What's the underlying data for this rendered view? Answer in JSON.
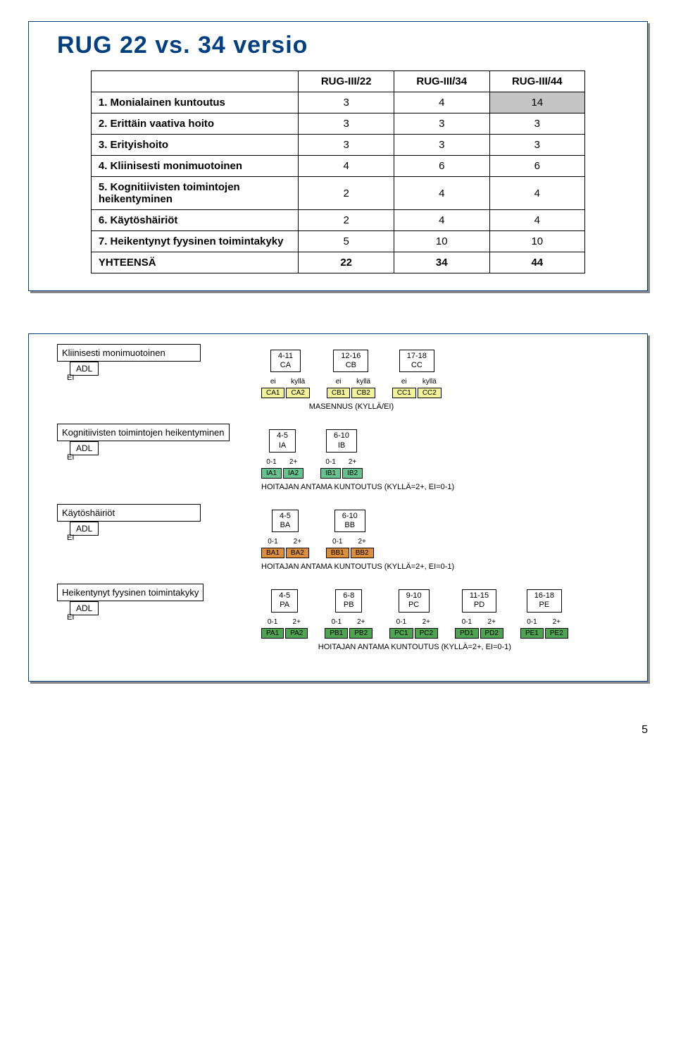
{
  "page": {
    "number": "5"
  },
  "card1": {
    "title": "RUG 22 vs. 34 versio",
    "cols": [
      "RUG-III/22",
      "RUG-III/34",
      "RUG-III/44"
    ],
    "rows": [
      {
        "label": "1. Monialainen kuntoutus",
        "vals": [
          "3",
          "4",
          "14"
        ],
        "hl": 2
      },
      {
        "label": "2. Erittäin vaativa hoito",
        "vals": [
          "3",
          "3",
          "3"
        ],
        "hl": -1
      },
      {
        "label": "3. Erityishoito",
        "vals": [
          "3",
          "3",
          "3"
        ],
        "hl": -1
      },
      {
        "label": "4. Kliinisesti monimuotoinen",
        "vals": [
          "4",
          "6",
          "6"
        ],
        "hl": -1
      },
      {
        "label": "5. Kognitiivisten toimintojen heikentyminen",
        "vals": [
          "2",
          "4",
          "4"
        ],
        "hl": -1
      },
      {
        "label": "6. Käytöshäiriöt",
        "vals": [
          "2",
          "4",
          "4"
        ],
        "hl": -1
      },
      {
        "label": "7. Heikentynyt fyysinen toimintakyky",
        "vals": [
          "5",
          "10",
          "10"
        ],
        "hl": -1
      }
    ],
    "total": {
      "label": "YHTEENSÄ",
      "vals": [
        "22",
        "34",
        "44"
      ]
    }
  },
  "diagram": {
    "adl": "ADL",
    "ei": "EI",
    "notes": {
      "masennus": "MASENNUS (KYLLÄ/EI)",
      "hoitajan": "HOITAJAN ANTAMA KUNTOUTUS (KYLLÄ=2+, EI=0-1)"
    },
    "colors": {
      "CA": "#f2f29a",
      "CB": "#f2f29a",
      "CC": "#f2f29a",
      "IA": "#66c38f",
      "IB": "#66c38f",
      "BA": "#db8f3a",
      "BB": "#db8f3a",
      "PA": "#4fa450",
      "PB": "#4fa450",
      "PC": "#4fa450",
      "PD": "#4fa450",
      "PE": "#4fa450"
    },
    "sections": [
      {
        "name": "Kliinisesti monimuotoinen",
        "headerSplit": [
          "ei",
          "kyllä"
        ],
        "groups": [
          {
            "range": "4-11",
            "code": "CA",
            "leaves": [
              "CA1",
              "CA2"
            ]
          },
          {
            "range": "12-16",
            "code": "CB",
            "leaves": [
              "CB1",
              "CB2"
            ]
          },
          {
            "range": "17-18",
            "code": "CC",
            "leaves": [
              "CC1",
              "CC2"
            ]
          }
        ],
        "split": [
          "ei",
          "kyllä"
        ],
        "noteKey": "masennus"
      },
      {
        "name": "Kognitiivisten toimintojen heikentyminen",
        "groups": [
          {
            "range": "4-5",
            "code": "IA",
            "leaves": [
              "IA1",
              "IA2"
            ]
          },
          {
            "range": "6-10",
            "code": "IB",
            "leaves": [
              "IB1",
              "IB2"
            ]
          }
        ],
        "split": [
          "0-1",
          "2+"
        ],
        "noteKey": "hoitajan"
      },
      {
        "name": "Käytöshäiriöt",
        "groups": [
          {
            "range": "4-5",
            "code": "BA",
            "leaves": [
              "BA1",
              "BA2"
            ]
          },
          {
            "range": "6-10",
            "code": "BB",
            "leaves": [
              "BB1",
              "BB2"
            ]
          }
        ],
        "split": [
          "0-1",
          "2+"
        ],
        "noteKey": "hoitajan"
      },
      {
        "name": "Heikentynyt fyysinen toimintakyky",
        "groups": [
          {
            "range": "4-5",
            "code": "PA",
            "leaves": [
              "PA1",
              "PA2"
            ]
          },
          {
            "range": "6-8",
            "code": "PB",
            "leaves": [
              "PB1",
              "PB2"
            ]
          },
          {
            "range": "9-10",
            "code": "PC",
            "leaves": [
              "PC1",
              "PC2"
            ]
          },
          {
            "range": "11-15",
            "code": "PD",
            "leaves": [
              "PD1",
              "PD2"
            ]
          },
          {
            "range": "16-18",
            "code": "PE",
            "leaves": [
              "PE1",
              "PE2"
            ]
          }
        ],
        "split": [
          "0-1",
          "2+"
        ],
        "noteKey": "hoitajan"
      }
    ]
  }
}
